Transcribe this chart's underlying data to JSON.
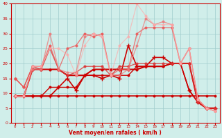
{
  "xlabel": "Vent moyen/en rafales ( km/h )",
  "xlim": [
    -0.5,
    23.5
  ],
  "ylim": [
    0,
    40
  ],
  "yticks": [
    0,
    5,
    10,
    15,
    20,
    25,
    30,
    35,
    40
  ],
  "xticks": [
    0,
    1,
    2,
    3,
    4,
    5,
    6,
    7,
    8,
    9,
    10,
    11,
    12,
    13,
    14,
    15,
    16,
    17,
    18,
    19,
    20,
    21,
    22,
    23
  ],
  "bg_color": "#d0eeea",
  "grid_color": "#a0cccc",
  "series": [
    {
      "x": [
        0,
        1,
        2,
        3,
        4,
        5,
        6,
        7,
        8,
        9,
        10,
        11,
        12,
        13,
        14,
        15,
        16,
        17,
        18,
        19,
        20,
        21,
        22,
        23
      ],
      "y": [
        9,
        9,
        9,
        9,
        9,
        9,
        9,
        9,
        9,
        9,
        9,
        9,
        9,
        9,
        9,
        9,
        9,
        9,
        9,
        9,
        9,
        9,
        9,
        9
      ],
      "color": "#cc0000",
      "lw": 1.2,
      "alpha": 1.0,
      "marker": "o",
      "ms": 1.8
    },
    {
      "x": [
        0,
        1,
        2,
        3,
        4,
        5,
        6,
        7,
        8,
        9,
        10,
        11,
        12,
        13,
        14,
        15,
        16,
        17,
        18,
        19,
        20,
        21,
        22,
        23
      ],
      "y": [
        9,
        9,
        9,
        9,
        12,
        12,
        12,
        12,
        16,
        16,
        16,
        16,
        16,
        16,
        19,
        19,
        19,
        19,
        20,
        20,
        11,
        7,
        5,
        5
      ],
      "color": "#cc0000",
      "lw": 1.0,
      "alpha": 1.0,
      "marker": "o",
      "ms": 1.8
    },
    {
      "x": [
        0,
        1,
        2,
        3,
        4,
        5,
        6,
        7,
        8,
        9,
        10,
        11,
        12,
        13,
        14,
        15,
        16,
        17,
        18,
        19,
        20,
        21,
        22,
        23
      ],
      "y": [
        9,
        9,
        18,
        18,
        18,
        18,
        16,
        16,
        16,
        18,
        18,
        18,
        18,
        18,
        18,
        19,
        19,
        19,
        20,
        20,
        20,
        7,
        5,
        5
      ],
      "color": "#cc0000",
      "lw": 1.5,
      "alpha": 1.0,
      "marker": "o",
      "ms": 2.0
    },
    {
      "x": [
        0,
        1,
        2,
        3,
        4,
        5,
        6,
        7,
        8,
        9,
        10,
        11,
        12,
        13,
        14,
        15,
        16,
        17,
        18,
        19,
        20,
        21,
        22,
        23
      ],
      "y": [
        9,
        9,
        9,
        9,
        9,
        12,
        15,
        11,
        16,
        16,
        15,
        16,
        15,
        26,
        19,
        19,
        22,
        22,
        20,
        20,
        11,
        7,
        5,
        5
      ],
      "color": "#cc0000",
      "lw": 1.2,
      "alpha": 1.0,
      "marker": "+",
      "ms": 4
    },
    {
      "x": [
        0,
        1,
        2,
        3,
        4,
        5,
        6,
        7,
        8,
        9,
        10,
        11,
        12,
        13,
        14,
        15,
        16,
        17,
        18,
        19,
        20,
        21,
        22,
        23
      ],
      "y": [
        15,
        12,
        19,
        18,
        25,
        18,
        16,
        17,
        19,
        19,
        19,
        16,
        19,
        19,
        20,
        20,
        20,
        20,
        20,
        20,
        20,
        7,
        5,
        5
      ],
      "color": "#dd3333",
      "lw": 1.0,
      "alpha": 0.8,
      "marker": "o",
      "ms": 2.0
    },
    {
      "x": [
        0,
        1,
        2,
        3,
        4,
        5,
        6,
        7,
        8,
        9,
        10,
        11,
        12,
        13,
        14,
        15,
        16,
        17,
        18,
        19,
        20,
        21,
        22,
        23
      ],
      "y": [
        15,
        12,
        19,
        19,
        26,
        18,
        25,
        26,
        30,
        29,
        30,
        16,
        18,
        18,
        30,
        32,
        32,
        32,
        32,
        20,
        25,
        8,
        5,
        4
      ],
      "color": "#ee5555",
      "lw": 1.0,
      "alpha": 0.75,
      "marker": "o",
      "ms": 2.0
    },
    {
      "x": [
        0,
        1,
        2,
        3,
        4,
        5,
        6,
        7,
        8,
        9,
        10,
        11,
        12,
        13,
        14,
        15,
        16,
        17,
        18,
        19,
        20,
        21,
        22,
        23
      ],
      "y": [
        9,
        9,
        18,
        18,
        30,
        18,
        17,
        17,
        29,
        30,
        29,
        16,
        16,
        18,
        26,
        35,
        33,
        34,
        33,
        20,
        25,
        8,
        5,
        4
      ],
      "color": "#ee7777",
      "lw": 1.0,
      "alpha": 0.7,
      "marker": "o",
      "ms": 2.0
    },
    {
      "x": [
        0,
        1,
        2,
        3,
        4,
        5,
        6,
        7,
        8,
        9,
        10,
        11,
        12,
        13,
        14,
        15,
        16,
        17,
        18,
        19,
        20,
        21,
        22,
        23
      ],
      "y": [
        9,
        9,
        19,
        19,
        25,
        25,
        23,
        16,
        26,
        30,
        29,
        16,
        26,
        29,
        40,
        36,
        33,
        33,
        33,
        20,
        25,
        8,
        5,
        4
      ],
      "color": "#ffaaaa",
      "lw": 0.9,
      "alpha": 0.65,
      "marker": "o",
      "ms": 2.0
    }
  ]
}
